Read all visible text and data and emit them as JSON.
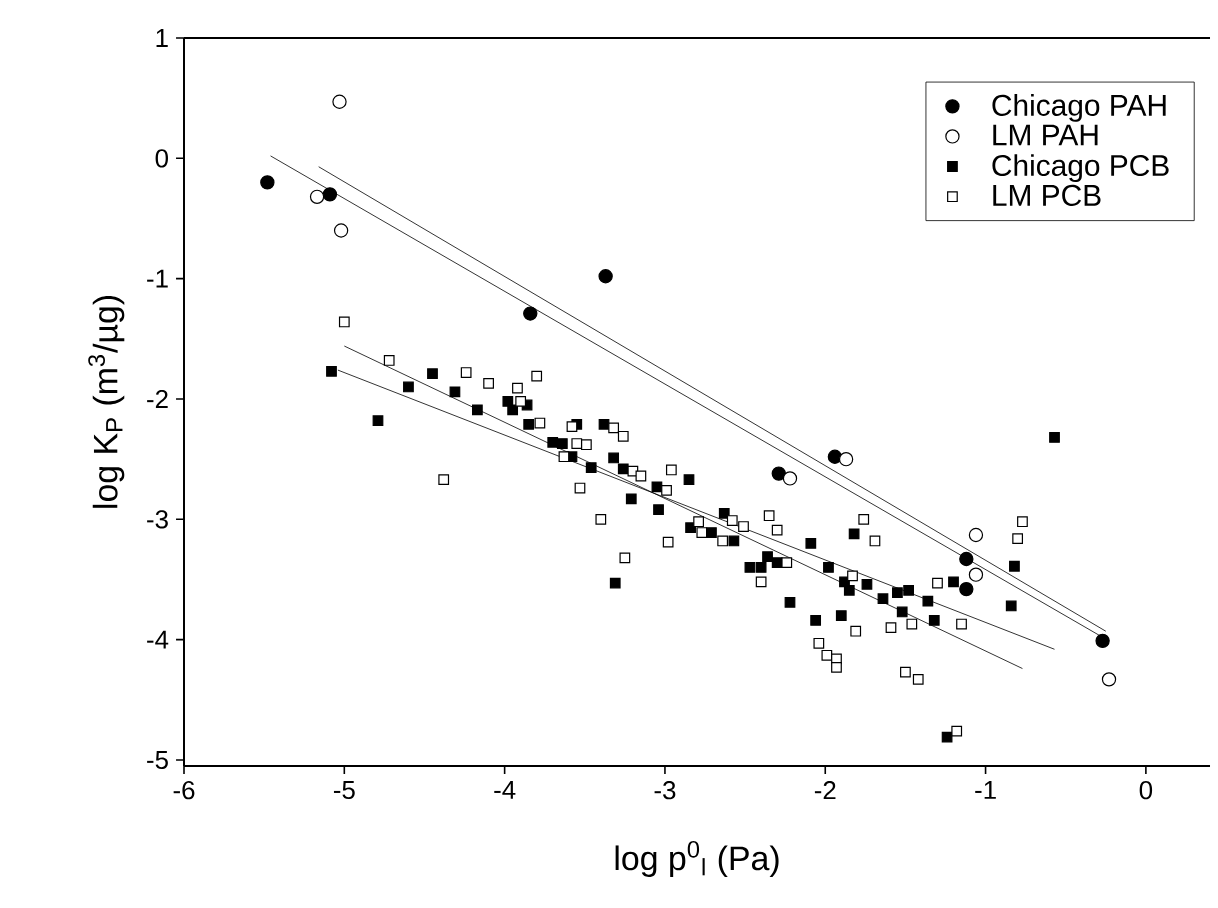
{
  "chart_data": {
    "type": "scatter",
    "xlabel": "log p$^{0}$$_{l}$ (Pa)",
    "ylabel": "log K$_{P}$ (m$^{3}$/µg)",
    "xlim": [
      -6,
      0.4
    ],
    "ylim": [
      -5.05,
      1
    ],
    "xticks": [
      -6,
      -5,
      -4,
      -3,
      -2,
      -1,
      0
    ],
    "yticks": [
      -5,
      -4,
      -3,
      -2,
      -1,
      0,
      1
    ],
    "grid": false,
    "legend": "top right",
    "series": [
      {
        "name": "Chicago PAH",
        "color": "#000000",
        "marker": "circle",
        "x": [
          -5.48,
          -5.09,
          -3.84,
          -3.37,
          -2.29,
          -1.94,
          -1.12,
          -1.12,
          -0.27
        ],
        "values": [
          -0.2,
          -0.3,
          -1.29,
          -0.98,
          -2.62,
          -2.48,
          -3.33,
          -3.58,
          -4.01
        ]
      },
      {
        "name": "LM PAH",
        "color": "#ffffff",
        "marker": "circle",
        "x": [
          -5.03,
          -5.17,
          -5.02,
          -2.22,
          -1.87,
          -1.06,
          -1.06,
          -0.23
        ],
        "values": [
          0.47,
          -0.32,
          -0.6,
          -2.66,
          -2.5,
          -3.13,
          -3.46,
          -4.33
        ]
      },
      {
        "name": "Chicago PCB",
        "color": "#000000",
        "marker": "square",
        "x": [
          -5.08,
          -4.79,
          -4.6,
          -4.45,
          -4.31,
          -4.17,
          -3.98,
          -3.95,
          -3.86,
          -3.85,
          -3.7,
          -3.64,
          -3.55,
          -3.38,
          -3.58,
          -3.32,
          -3.46,
          -3.26,
          -3.21,
          -3.05,
          -3.04,
          -3.31,
          -0.57,
          -2.85,
          -2.84,
          -2.71,
          -2.63,
          -2.57,
          -2.47,
          -2.4,
          -2.36,
          -2.3,
          -2.22,
          -2.09,
          -2.06,
          -1.98,
          -1.9,
          -1.88,
          -1.85,
          -1.82,
          -1.74,
          -1.64,
          -1.55,
          -1.48,
          -1.52,
          -1.36,
          -1.32,
          -1.2,
          -1.24,
          -0.84,
          -0.82
        ],
        "values": [
          -1.77,
          -2.18,
          -1.9,
          -1.79,
          -1.94,
          -2.09,
          -2.02,
          -2.09,
          -2.05,
          -2.21,
          -2.36,
          -2.37,
          -2.21,
          -2.21,
          -2.48,
          -2.49,
          -2.57,
          -2.58,
          -2.83,
          -2.73,
          -2.92,
          -3.53,
          -2.32,
          -2.67,
          -3.07,
          -3.11,
          -2.95,
          -3.18,
          -3.4,
          -3.4,
          -3.31,
          -3.36,
          -3.69,
          -3.2,
          -3.84,
          -3.4,
          -3.8,
          -3.52,
          -3.59,
          -3.12,
          -3.54,
          -3.66,
          -3.61,
          -3.59,
          -3.77,
          -3.68,
          -3.84,
          -3.52,
          -4.81,
          -3.72,
          -3.39
        ]
      },
      {
        "name": "LM PCB",
        "color": "#ffffff",
        "marker": "square",
        "x": [
          -5.0,
          -4.72,
          -4.24,
          -4.1,
          -3.92,
          -3.8,
          -3.78,
          -3.9,
          -3.58,
          -3.55,
          -3.49,
          -3.63,
          -3.32,
          -3.26,
          -4.38,
          -3.53,
          -3.4,
          -3.25,
          -3.2,
          -3.15,
          -2.99,
          -2.98,
          -2.96,
          -2.79,
          -2.77,
          -2.64,
          -2.58,
          -2.51,
          -2.35,
          -2.3,
          -2.4,
          -2.24,
          -2.04,
          -1.99,
          -1.93,
          -1.93,
          -1.83,
          -1.81,
          -1.76,
          -1.69,
          -1.59,
          -1.46,
          -1.5,
          -1.42,
          -1.3,
          -1.15,
          -1.18,
          -0.8,
          -0.77
        ],
        "values": [
          -1.36,
          -1.68,
          -1.78,
          -1.87,
          -1.91,
          -1.81,
          -2.2,
          -2.02,
          -2.23,
          -2.37,
          -2.38,
          -2.48,
          -2.24,
          -2.31,
          -2.67,
          -2.74,
          -3.0,
          -3.32,
          -2.6,
          -2.64,
          -2.76,
          -3.19,
          -2.59,
          -3.02,
          -3.11,
          -3.18,
          -3.01,
          -3.06,
          -2.97,
          -3.09,
          -3.52,
          -3.36,
          -4.03,
          -4.13,
          -4.16,
          -4.23,
          -3.47,
          -3.93,
          -3.0,
          -3.18,
          -3.9,
          -3.87,
          -4.27,
          -4.33,
          -3.53,
          -3.87,
          -4.76,
          -3.16,
          -3.02
        ]
      },
      {
        "type": "line",
        "color": "#000000",
        "x": [
          -5.46,
          -0.27
        ],
        "values": [
          0.02,
          -3.98
        ]
      },
      {
        "type": "line",
        "color": "#000000",
        "x": [
          -5.16,
          -0.25
        ],
        "values": [
          -0.07,
          -3.93
        ]
      },
      {
        "type": "line",
        "color": "#000000",
        "x": [
          -5.04,
          -0.57
        ],
        "values": [
          -1.76,
          -4.08
        ]
      },
      {
        "type": "line",
        "color": "#000000",
        "x": [
          -5.0,
          -0.77
        ],
        "values": [
          -1.56,
          -4.24
        ]
      }
    ]
  }
}
